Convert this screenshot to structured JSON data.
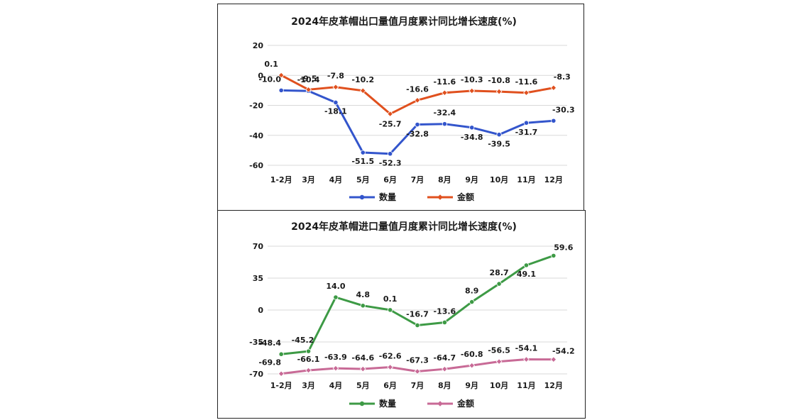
{
  "chart_data": [
    {
      "type": "line",
      "title": "2024年皮革帽出口量值月度累计同比增长速度(%)",
      "categories": [
        "1-2月",
        "3月",
        "4月",
        "5月",
        "6月",
        "7月",
        "8月",
        "9月",
        "10月",
        "11月",
        "12月"
      ],
      "ylim": [
        -60,
        20
      ],
      "yticks": [
        20,
        0,
        -20,
        -40,
        -60
      ],
      "grid": true,
      "legend": "bottom",
      "series": [
        {
          "name": "数量",
          "color": "#3355cc",
          "values": [
            -10.0,
            -10.4,
            -18.1,
            -51.5,
            -52.3,
            -32.8,
            -32.4,
            -34.8,
            -39.5,
            -31.7,
            -30.3
          ],
          "labels": [
            "-10.0",
            "-10.4",
            "-18.1",
            "-51.5",
            "-52.3",
            "-32.8",
            "-32.4",
            "-34.8",
            "-39.5",
            "-31.7",
            "-30.3"
          ]
        },
        {
          "name": "金额",
          "color": "#e0501e",
          "values": [
            0.1,
            -9.5,
            -7.8,
            -10.2,
            -25.7,
            -16.6,
            -11.6,
            -10.3,
            -10.8,
            -11.6,
            -8.3
          ],
          "labels": [
            "0.1",
            "-9.5",
            "-7.8",
            "-10.2",
            "-25.7",
            "-16.6",
            "-11.6",
            "-10.3",
            "-10.8",
            "-11.6",
            "-8.3"
          ]
        }
      ]
    },
    {
      "type": "line",
      "title": "2024年皮革帽进口量值月度累计同比增长速度(%)",
      "categories": [
        "1-2月",
        "3月",
        "4月",
        "5月",
        "6月",
        "7月",
        "8月",
        "9月",
        "10月",
        "11月",
        "12月"
      ],
      "ylim": [
        -70,
        70
      ],
      "yticks": [
        70,
        35,
        0,
        -35,
        -70
      ],
      "grid": true,
      "legend": "bottom",
      "series": [
        {
          "name": "数量",
          "color": "#3d9a45",
          "values": [
            -48.4,
            -45.2,
            14.0,
            4.8,
            0.1,
            -16.7,
            -13.6,
            8.9,
            28.7,
            49.1,
            59.6
          ],
          "labels": [
            "-48.4",
            "-45.2",
            "14.0",
            "4.8",
            "0.1",
            "-16.7",
            "-13.6",
            "8.9",
            "28.7",
            "49.1",
            "59.6"
          ]
        },
        {
          "name": "金额",
          "color": "#c86a96",
          "values": [
            -69.8,
            -66.1,
            -63.9,
            -64.6,
            -62.6,
            -67.3,
            -64.7,
            -60.8,
            -56.5,
            -54.1,
            -54.2
          ],
          "labels": [
            "-69.8",
            "-66.1",
            "-63.9",
            "-64.6",
            "-62.6",
            "-67.3",
            "-64.7",
            "-60.8",
            "-56.5",
            "-54.1",
            "-54.2"
          ]
        }
      ]
    }
  ]
}
